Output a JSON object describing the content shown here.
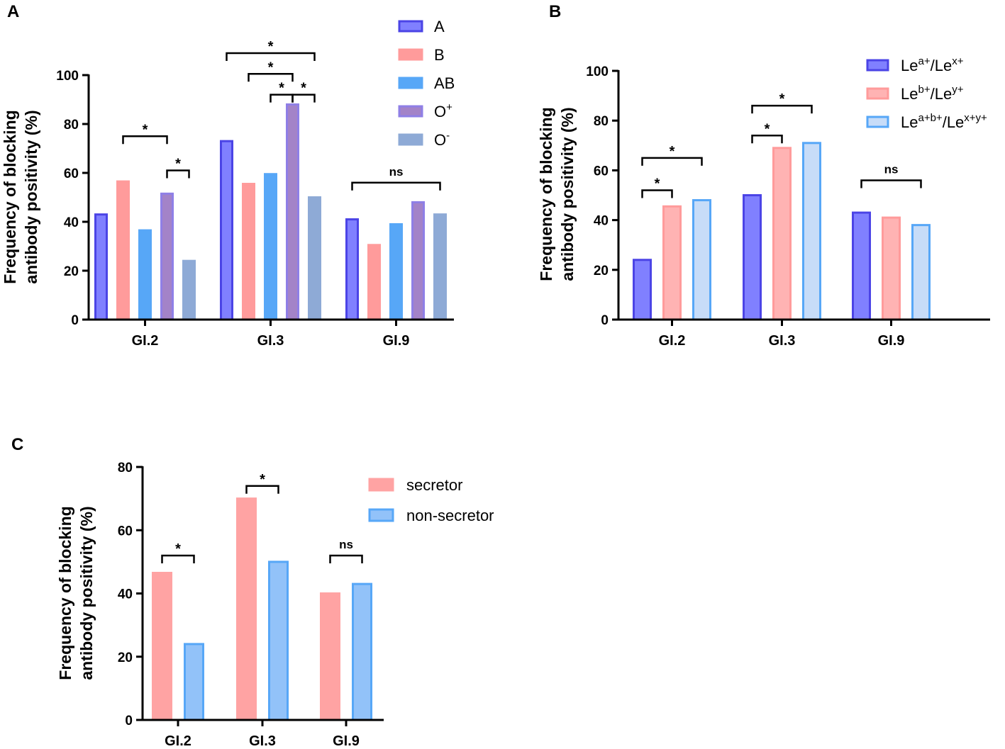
{
  "chart_data": [
    {
      "panel": "A",
      "type": "bar",
      "ylabel_line1": "Frequency of blocking",
      "ylabel_line2": "antibody positivity (%)",
      "ylim": [
        0,
        100
      ],
      "yticks": [
        0,
        20,
        40,
        60,
        80,
        100
      ],
      "categories": [
        "GI.2",
        "GI.3",
        "GI.9"
      ],
      "series": [
        {
          "name": "A",
          "sup": "",
          "values": [
            43,
            73,
            41
          ],
          "fill": "#8080ff",
          "stroke": "#4b44e6"
        },
        {
          "name": "B",
          "sup": "",
          "values": [
            56.5,
            55.5,
            30.5
          ],
          "fill": "#ff9b9b",
          "stroke": "#ff9b9b"
        },
        {
          "name": "AB",
          "sup": "",
          "values": [
            36.5,
            59.5,
            39
          ],
          "fill": "#57a7f7",
          "stroke": "#57a7f7"
        },
        {
          "name": "O",
          "sup": "+",
          "values": [
            51.5,
            88,
            48
          ],
          "fill": "#a383c8",
          "stroke": "#8f7fe6"
        },
        {
          "name": "O",
          "sup": "-",
          "values": [
            24,
            50,
            43
          ],
          "fill": "#8eaad6",
          "stroke": "#8eaad6"
        }
      ],
      "annotations": [
        {
          "cat": 0,
          "from": 1,
          "to": 3,
          "level": 75,
          "label": "*"
        },
        {
          "cat": 0,
          "from": 3,
          "to": 4,
          "level": 61,
          "label": "*"
        },
        {
          "cat": 1,
          "from": 0,
          "to": 4,
          "level": 109,
          "label": "*"
        },
        {
          "cat": 1,
          "from": 1,
          "to": 3,
          "level": 100.5,
          "label": "*"
        },
        {
          "cat": 1,
          "from": 2,
          "to": 3,
          "level": 92,
          "label": "*"
        },
        {
          "cat": 1,
          "from": 3,
          "to": 4,
          "level": 92,
          "label": "*"
        },
        {
          "cat": 2,
          "from": 0,
          "to": 4,
          "level": 56,
          "label": "ns"
        }
      ]
    },
    {
      "panel": "B",
      "type": "bar",
      "ylabel_line1": "Frequency of blocking",
      "ylabel_line2": "antibody positivity (%)",
      "ylim": [
        0,
        100
      ],
      "yticks": [
        0,
        20,
        40,
        60,
        80,
        100
      ],
      "categories": [
        "GI.2",
        "GI.3",
        "GI.9"
      ],
      "series": [
        {
          "name": "Le",
          "sup": "a+",
          "name2": "/Le",
          "sup2": "x+",
          "values": [
            24,
            50,
            43
          ],
          "fill": "#8080ff",
          "stroke": "#4b44e6"
        },
        {
          "name": "Le",
          "sup": "b+",
          "name2": "/Le",
          "sup2": "y+",
          "values": [
            45.5,
            69,
            41
          ],
          "fill": "#ffb3b3",
          "stroke": "#ff9b9b"
        },
        {
          "name": "Le",
          "sup": "a+b+",
          "name2": "/Le",
          "sup2": "x+y+",
          "values": [
            48,
            71,
            38
          ],
          "fill": "#c7dcf8",
          "stroke": "#57a7f7"
        }
      ],
      "annotations": [
        {
          "cat": 0,
          "from": 0,
          "to": 2,
          "level": 65,
          "label": "*"
        },
        {
          "cat": 0,
          "from": 0,
          "to": 1,
          "level": 52,
          "label": "*"
        },
        {
          "cat": 1,
          "from": 0,
          "to": 2,
          "level": 86,
          "label": "*"
        },
        {
          "cat": 1,
          "from": 0,
          "to": 1,
          "level": 74,
          "label": "*"
        },
        {
          "cat": 2,
          "from": 0,
          "to": 2,
          "level": 56,
          "label": "ns"
        }
      ]
    },
    {
      "panel": "C",
      "type": "bar",
      "ylabel_line1": "Frequency of blocking",
      "ylabel_line2": "antibody positivity (%)",
      "ylim": [
        0,
        80
      ],
      "yticks": [
        0,
        20,
        40,
        60,
        80
      ],
      "categories": [
        "GI.2",
        "GI.3",
        "GI.9"
      ],
      "series": [
        {
          "name": "secretor",
          "sup": "",
          "values": [
            46.5,
            70,
            40
          ],
          "fill": "#ffa3a3",
          "stroke": "#ffa3a3"
        },
        {
          "name": "non-secretor",
          "sup": "",
          "values": [
            24,
            50,
            43
          ],
          "fill": "#92c2f9",
          "stroke": "#57a7f7"
        }
      ],
      "annotations": [
        {
          "cat": 0,
          "from": 0,
          "to": 1,
          "level": 52,
          "label": "*"
        },
        {
          "cat": 1,
          "from": 0,
          "to": 1,
          "level": 74,
          "label": "*"
        },
        {
          "cat": 2,
          "from": 0,
          "to": 1,
          "level": 52,
          "label": "ns"
        }
      ]
    }
  ]
}
